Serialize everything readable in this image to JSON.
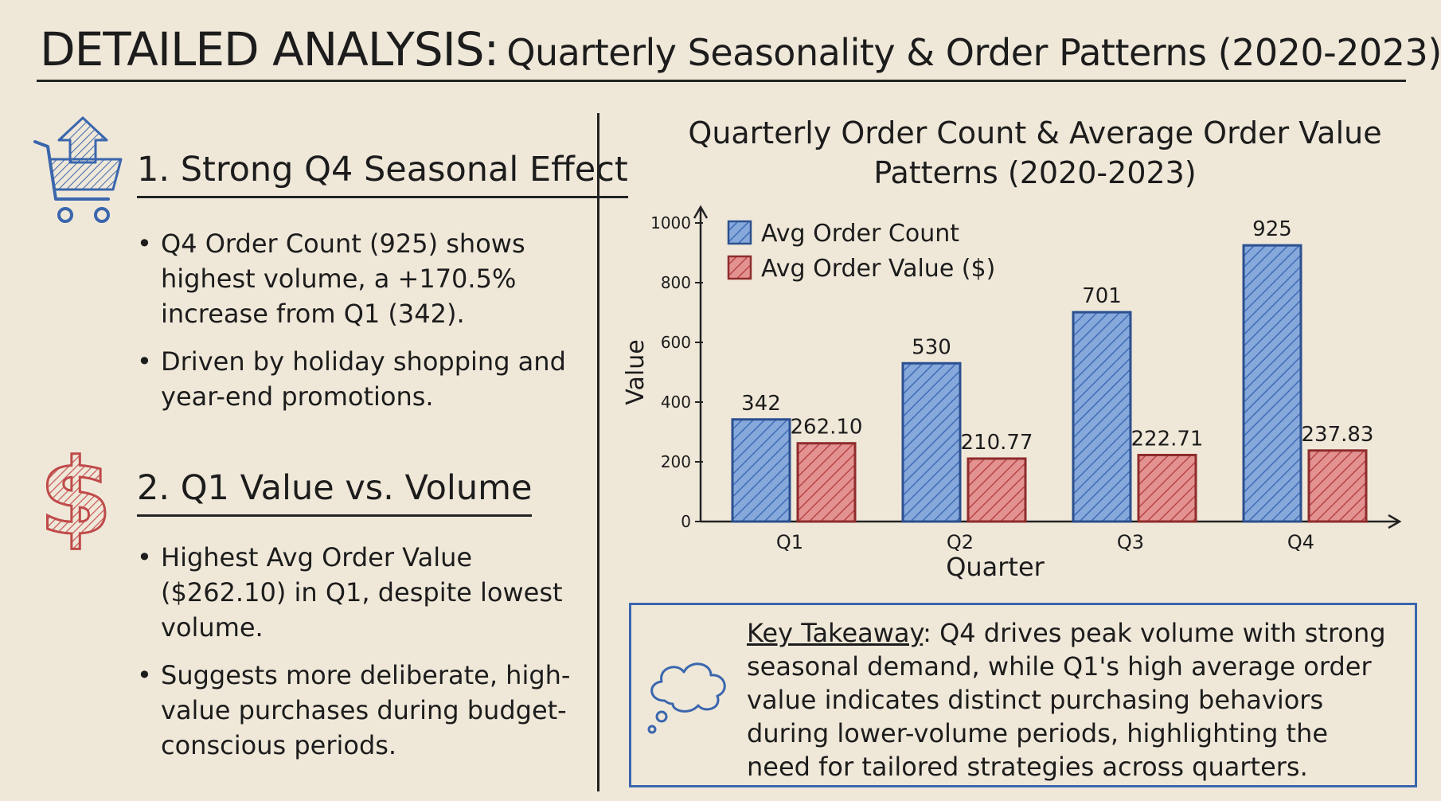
{
  "header": {
    "title_main": "DETAILED ANALYSIS:",
    "title_sub": "Quarterly Seasonality & Order Patterns (2020-2023)"
  },
  "sections": [
    {
      "title": "1. Strong Q4 Seasonal Effect",
      "icon": "shopping-cart-up-icon",
      "bullets": [
        "Q4 Order Count (925) shows highest volume, a +170.5% increase from Q1 (342).",
        "Driven by holiday shopping and year-end promotions."
      ]
    },
    {
      "title": "2. Q1 Value vs. Volume",
      "icon": "dollar-sign-icon",
      "bullets": [
        "Highest Avg Order Value ($262.10) in Q1, despite lowest volume.",
        "Suggests more deliberate, high-value purchases during budget-conscious periods."
      ]
    }
  ],
  "chart_data": {
    "type": "bar",
    "title": "Quarterly Order Count & Average Order Value Patterns (2020-2023)",
    "categories": [
      "Q1",
      "Q2",
      "Q3",
      "Q4"
    ],
    "series": [
      {
        "name": "Avg Order Count",
        "values": [
          342,
          530,
          701,
          925
        ],
        "labels": [
          "342",
          "530",
          "701",
          "925"
        ],
        "color": "#5a86c9"
      },
      {
        "name": "Avg Order Value ($)",
        "values": [
          262.1,
          210.77,
          222.71,
          237.83
        ],
        "labels": [
          "262.10",
          "210.77",
          "222.71",
          "237.83"
        ],
        "color": "#c85a5a"
      }
    ],
    "xlabel": "Quarter",
    "ylabel": "Value",
    "ylim": [
      0,
      1000
    ],
    "yticks": [
      0,
      200,
      400,
      600,
      800,
      1000
    ],
    "legend": "top-left"
  },
  "takeaway": {
    "label": "Key Takeaway",
    "text": ": Q4 drives peak volume with strong seasonal demand, while Q1's high average order value indicates distinct purchasing behaviors during lower-volume periods, highlighting the need for tailored strategies across quarters.",
    "icon": "thought-bubble-icon"
  },
  "colors": {
    "accent_blue": "#3a66ad",
    "accent_red": "#c85a5a",
    "background": "#efe8d9"
  }
}
